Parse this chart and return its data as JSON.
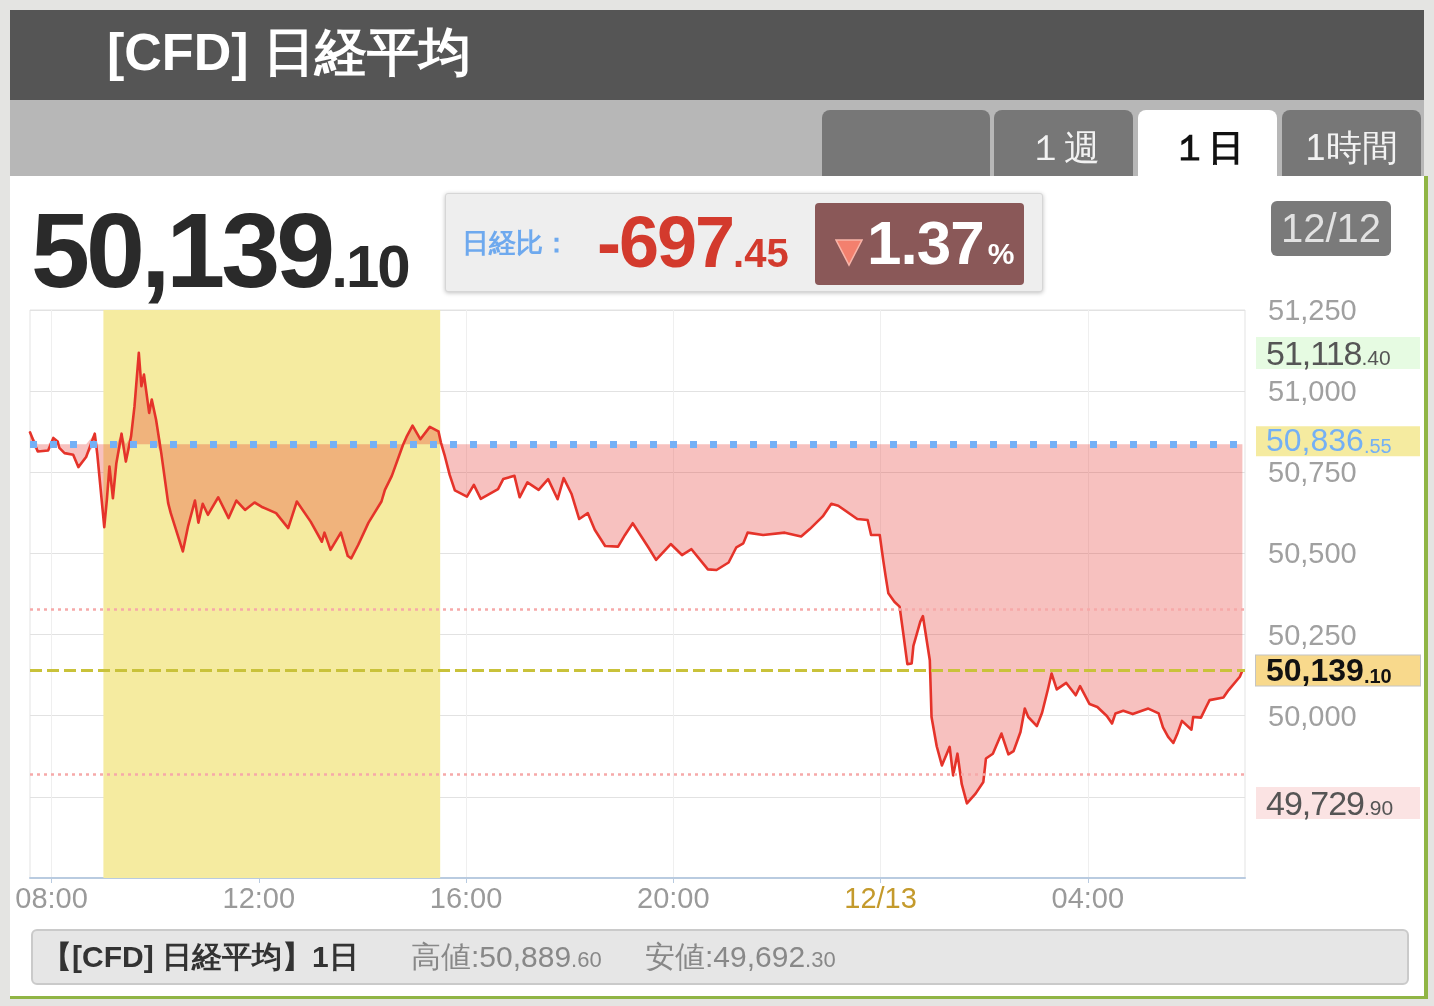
{
  "chart_data": {
    "type": "line",
    "title": "[CFD] 日経平均",
    "x": [
      "--12-12T07:35",
      "--12-12T07:44",
      "--12-12T07:56",
      "--12-12T08:02",
      "--12-12T08:07",
      "--12-12T08:09",
      "--12-12T08:15",
      "--12-12T08:25",
      "--12-12T08:31",
      "--12-12T08:40",
      "--12-12T08:50",
      "--12-12T08:53",
      "--12-12T09:01",
      "--12-12T09:04",
      "--12-12T09:07",
      "--12-12T09:11",
      "--12-12T09:15",
      "--12-12T09:21",
      "--12-12T09:26",
      "--12-12T09:32",
      "--12-12T09:36",
      "--12-12T09:41",
      "--12-12T09:44",
      "--12-12T09:47",
      "--12-12T09:53",
      "--12-12T09:56",
      "--12-12T10:01",
      "--12-12T10:07",
      "--12-12T10:15",
      "--12-12T10:18",
      "--12-12T10:32",
      "--12-12T10:38",
      "--12-12T10:46",
      "--12-12T10:50",
      "--12-12T10:55",
      "--12-12T11:01",
      "--12-12T11:13",
      "--12-12T11:25",
      "--12-12T11:34",
      "--12-12T11:44",
      "--12-12T11:55",
      "--12-12T12:03",
      "--12-12T12:20",
      "--12-12T12:34",
      "--12-12T12:44",
      "--12-12T13:00",
      "--12-12T13:13",
      "--12-12T13:16",
      "--12-12T13:23",
      "--12-12T13:35",
      "--12-12T13:43",
      "--12-12T13:47",
      "--12-12T13:55",
      "--12-12T14:07",
      "--12-12T14:22",
      "--12-12T14:26",
      "--12-12T14:34",
      "--12-12T14:47",
      "--12-12T14:51",
      "--12-12T14:58",
      "--12-12T15:07",
      "--12-12T15:18",
      "--12-12T15:28",
      "--12-12T15:31",
      "--12-12T15:35",
      "--12-12T15:41",
      "--12-12T15:47",
      "--12-12T16:01",
      "--12-12T16:09",
      "--12-12T16:17",
      "--12-12T16:37",
      "--12-12T16:43",
      "--12-12T16:56",
      "--12-12T17:02",
      "--12-12T17:11",
      "--12-12T17:24",
      "--12-12T17:35",
      "--12-12T17:46",
      "--12-12T17:53",
      "--12-12T18:02",
      "--12-12T18:11",
      "--12-12T18:21",
      "--12-12T18:29",
      "--12-12T18:41",
      "--12-12T18:56",
      "--12-12T19:04",
      "--12-12T19:13",
      "--12-12T19:31",
      "--12-12T19:40",
      "--12-12T19:57",
      "--12-12T20:10",
      "--12-12T20:21",
      "--12-12T20:40",
      "--12-12T20:50",
      "--12-12T21:04",
      "--12-12T21:13",
      "--12-12T21:21",
      "--12-12T21:26",
      "--12-12T21:44",
      "--12-12T22:09",
      "--12-12T22:28",
      "--12-12T22:38",
      "--12-12T22:53",
      "--12-12T23:03",
      "--12-12T23:11",
      "--12-12T23:33",
      "--12-12T23:45",
      "--12-12T23:49",
      "--12-12T23:59",
      "--12-13T00:03",
      "--12-13T00:06",
      "--12-13T00:09",
      "--12-13T00:16",
      "--12-13T00:22",
      "--12-13T00:26",
      "--12-13T00:31",
      "--12-13T00:36",
      "--12-13T00:38",
      "--12-13T00:46",
      "--12-13T00:49",
      "--12-13T00:57",
      "--12-13T00:59",
      "--12-13T01:05",
      "--12-13T01:11",
      "--12-13T01:20",
      "--12-13T01:24",
      "--12-13T01:29",
      "--12-13T01:34",
      "--12-13T01:40",
      "--12-13T01:50",
      "--12-13T01:59",
      "--12-13T02:02",
      "--12-13T02:10",
      "--12-13T02:20",
      "--12-13T02:28",
      "--12-13T02:34",
      "--12-13T02:42",
      "--12-13T02:47",
      "--12-13T02:51",
      "--12-13T03:01",
      "--12-13T03:07",
      "--12-13T03:14",
      "--12-13T03:18",
      "--12-13T03:24",
      "--12-13T03:35",
      "--12-13T03:46",
      "--12-13T03:51",
      "--12-13T04:02",
      "--12-13T04:11",
      "--12-13T04:22",
      "--12-13T04:28",
      "--12-13T04:32",
      "--12-13T04:41",
      "--12-13T04:52",
      "--12-13T05:10",
      "--12-13T05:22",
      "--12-13T05:27",
      "--12-13T05:33",
      "--12-13T05:39",
      "--12-13T05:44",
      "--12-13T05:49",
      "--12-13T06:00",
      "--12-13T06:02",
      "--12-13T06:11",
      "--12-13T06:17",
      "--12-13T06:21",
      "--12-13T06:37",
      "--12-13T06:43",
      "--12-13T06:56",
      "--12-13T06:59"
    ],
    "series": [
      {
        "color": "#e5332a",
        "values": [
          50873,
          50814,
          50817,
          50856,
          50845,
          50825,
          50809,
          50804,
          50766,
          50797,
          50869,
          50804,
          50581,
          50665,
          50768,
          50670,
          50778,
          50869,
          50783,
          50860,
          50953,
          51118,
          51015,
          51051,
          50933,
          50974,
          50912,
          50809,
          50655,
          50624,
          50506,
          50583,
          50663,
          50595,
          50653,
          50619,
          50673,
          50609,
          50663,
          50634,
          50657,
          50644,
          50624,
          50578,
          50660,
          50598,
          50536,
          50564,
          50511,
          50564,
          50492,
          50485,
          50526,
          50595,
          50660,
          50696,
          50739,
          50835,
          50859,
          50894,
          50852,
          50890,
          50876,
          50840,
          50804,
          50742,
          50694,
          50675,
          50711,
          50668,
          50698,
          50729,
          50739,
          50673,
          50719,
          50696,
          50729,
          50667,
          50732,
          50684,
          50606,
          50624,
          50573,
          50523,
          50521,
          50557,
          50593,
          50519,
          50480,
          50529,
          50495,
          50513,
          50451,
          50449,
          50472,
          50519,
          50531,
          50564,
          50557,
          50564,
          50552,
          50575,
          50614,
          50653,
          50647,
          50606,
          50603,
          50557,
          50557,
          50480,
          50427,
          50377,
          50351,
          50336,
          50259,
          50159,
          50161,
          50215,
          50290,
          50307,
          50171,
          49996,
          49906,
          49847,
          49904,
          49816,
          49883,
          49789,
          49730,
          49760,
          49796,
          49868,
          49883,
          49945,
          49881,
          49891,
          49950,
          50022,
          49996,
          49968,
          50009,
          50084,
          50130,
          50081,
          50101,
          50063,
          50091,
          50036,
          50027,
          49999,
          49976,
          50007,
          50015,
          50005,
          50022,
          50007,
          49964,
          49935,
          49916,
          49947,
          49984,
          49957,
          49996,
          49994,
          50027,
          50048,
          50056,
          50079,
          50120,
          50139
        ],
        "lower": [
          50836.55,
          50814,
          50817,
          50836.55,
          50836.55,
          50825,
          50809,
          50804,
          50766,
          50797,
          50836.55,
          50804,
          50581,
          50665,
          50768,
          50670,
          50778,
          50836.55,
          50783,
          50836.55,
          50836.55,
          50836.55,
          50836.55,
          50836.55,
          50836.55,
          50836.55,
          50836.55,
          50809,
          50655,
          50624,
          50506,
          50583,
          50663,
          50595,
          50653,
          50619,
          50673,
          50609,
          50663,
          50634,
          50657,
          50644,
          50624,
          50578,
          50660,
          50598,
          50536,
          50564,
          50511,
          50564,
          50492,
          50485,
          50526,
          50595,
          50660,
          50696,
          50739,
          50835,
          50836.55,
          50836.55,
          50836.55,
          50836.55,
          50836.55,
          50836.55,
          50804,
          50742,
          50694,
          50675,
          50711,
          50668,
          50698,
          50729,
          50739,
          50673,
          50719,
          50696,
          50729,
          50667,
          50732,
          50684,
          50606,
          50624,
          50573,
          50523,
          50521,
          50557,
          50593,
          50519,
          50480,
          50529,
          50495,
          50513,
          50451,
          50449,
          50472,
          50519,
          50531,
          50564,
          50557,
          50564,
          50552,
          50575,
          50614,
          50653,
          50647,
          50606,
          50603,
          50557,
          50557,
          50480,
          50427,
          50377,
          50351,
          50336,
          50259,
          50159,
          50161,
          50215,
          50290,
          50307,
          50171,
          49996,
          49906,
          49847,
          49904,
          49816,
          49883,
          49789,
          49730,
          49760,
          49796,
          49868,
          49883,
          49945,
          49881,
          49891,
          49950,
          50022,
          49996,
          49968,
          50009,
          50084,
          50130,
          50081,
          50101,
          50063,
          50091,
          50036,
          50027,
          49999,
          49976,
          50007,
          50015,
          50005,
          50022,
          50007,
          49964,
          49935,
          49916,
          49947,
          49984,
          49957,
          49996,
          49994,
          50027,
          50048,
          50056,
          50079,
          50120,
          50139
        ],
        "upper": [
          50873,
          50836.55,
          50836.55,
          50856,
          50845,
          50836.55,
          50836.55,
          50836.55,
          50836.55,
          50836.55,
          50869,
          50836.55,
          50836.55,
          50836.55,
          50836.55,
          50836.55,
          50836.55,
          50869,
          50836.55,
          50860,
          50953,
          51118,
          51015,
          51051,
          50933,
          50974,
          50912,
          50836.55,
          50836.55,
          50836.55,
          50836.55,
          50836.55,
          50836.55,
          50836.55,
          50836.55,
          50836.55,
          50836.55,
          50836.55,
          50836.55,
          50836.55,
          50836.55,
          50836.55,
          50836.55,
          50836.55,
          50836.55,
          50836.55,
          50836.55,
          50836.55,
          50836.55,
          50836.55,
          50836.55,
          50836.55,
          50836.55,
          50836.55,
          50836.55,
          50836.55,
          50836.55,
          50836.55,
          50859,
          50894,
          50852,
          50890,
          50876,
          50840,
          50836.55,
          50836.55,
          50836.55,
          50836.55,
          50836.55,
          50836.55,
          50836.55,
          50836.55,
          50836.55,
          50836.55,
          50836.55,
          50836.55,
          50836.55,
          50836.55,
          50836.55,
          50836.55,
          50836.55,
          50836.55,
          50836.55,
          50836.55,
          50836.55,
          50836.55,
          50836.55,
          50836.55,
          50836.55,
          50836.55,
          50836.55,
          50836.55,
          50836.55,
          50836.55,
          50836.55,
          50836.55,
          50836.55,
          50836.55,
          50836.55,
          50836.55,
          50836.55,
          50836.55,
          50836.55,
          50836.55,
          50836.55,
          50836.55,
          50836.55,
          50836.55,
          50836.55,
          50836.55,
          50836.55,
          50836.55,
          50836.55,
          50836.55,
          50836.55,
          50836.55,
          50836.55,
          50836.55,
          50836.55,
          50836.55,
          50836.55,
          50836.55,
          50836.55,
          50836.55,
          50836.55,
          50836.55,
          50836.55,
          50836.55,
          50836.55,
          50836.55,
          50836.55,
          50836.55,
          50836.55,
          50836.55,
          50836.55,
          50836.55,
          50836.55,
          50836.55,
          50836.55,
          50836.55,
          50836.55,
          50836.55,
          50836.55,
          50836.55,
          50836.55,
          50836.55,
          50836.55,
          50836.55,
          50836.55,
          50836.55,
          50836.55,
          50836.55,
          50836.55,
          50836.55,
          50836.55,
          50836.55,
          50836.55,
          50836.55,
          50836.55,
          50836.55,
          50836.55,
          50836.55,
          50836.55,
          50836.55,
          50836.55,
          50836.55,
          50836.55,
          50836.55,
          50836.55,
          50836.55
        ]
      }
    ],
    "xlim": [
      "--12-12T07:35",
      "--12-13T07:02"
    ],
    "xticks": [
      {
        "value": "--12-12T08:00",
        "label": "08:00"
      },
      {
        "value": "--12-12T12:00",
        "label": "12:00"
      },
      {
        "value": "--12-12T16:00",
        "label": "16:00"
      },
      {
        "value": "--12-12T20:00",
        "label": "20:00"
      },
      {
        "value": "--12-13T00:00",
        "label": "12/13"
      },
      {
        "value": "--12-13T04:00",
        "label": "04:00"
      }
    ],
    "ylim": [
      49500,
      51250
    ],
    "yticks": [
      {
        "value": 49750,
        "label": null
      },
      {
        "value": 50000,
        "label": "50,000"
      },
      {
        "value": 50250,
        "label": "50,250"
      },
      {
        "value": 50500,
        "label": "50,500"
      },
      {
        "value": 50750,
        "label": "50,750"
      },
      {
        "value": 51000,
        "label": "51,000"
      },
      {
        "value": 51250,
        "label": "51,250"
      }
    ],
    "grid": true,
    "ref_lines": [
      {
        "axis": "y",
        "value": 50836.55,
        "label": "50,836.55",
        "color": "#74b0f5",
        "line_style": "dotted"
      },
      {
        "axis": "y",
        "value": 50139.1,
        "label": "50,139.10",
        "color": "#c9c23a",
        "line_style": "dashed"
      },
      {
        "axis": "y",
        "value": 50328,
        "color": "#f6a9a9",
        "line_style": "dotted"
      },
      {
        "axis": "y",
        "value": 49820,
        "color": "#f6a9a9",
        "line_style": "dotted"
      }
    ],
    "bands": [
      {
        "axis": "x",
        "from": "--12-12T09:00",
        "to": "--12-12T15:30",
        "color": "#f5eba0"
      }
    ],
    "annotations": [
      "50,139.10",
      "日経比：",
      "-697.45",
      "1.37%",
      "12/12",
      "１週",
      "１日",
      "1時間",
      "【[CFD] 日経平均】1日",
      "高値:50,889.60",
      "安値:49,692.30",
      "51,118.40",
      "49,729.90"
    ]
  }
}
